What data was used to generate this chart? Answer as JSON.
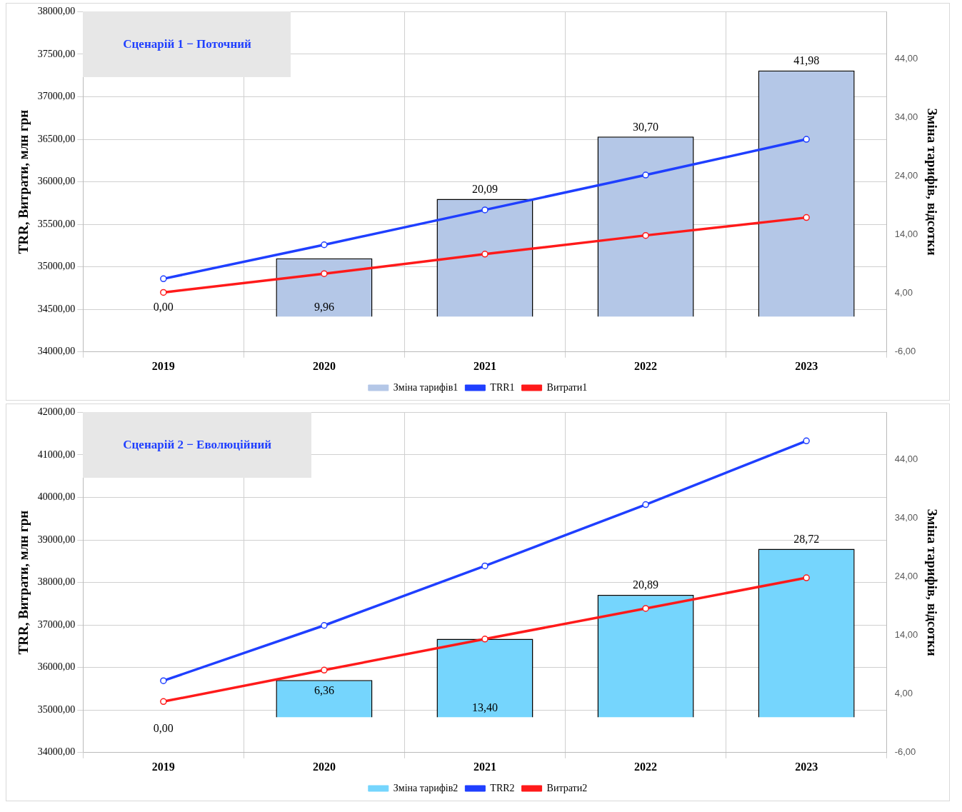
{
  "chart_data": [
    {
      "type": "bar",
      "title": "Сценарій 1 − Поточний",
      "ylabel": "TRR, Витрати, млн грн",
      "y2label": "Зміна тарифів, відсотки",
      "categories": [
        "2019",
        "2020",
        "2021",
        "2022",
        "2023"
      ],
      "series": [
        {
          "name": "Зміна тарифів1",
          "color": "#b4c7e7",
          "axis": "y2",
          "values": [
            0,
            9.96,
            20.09,
            30.7,
            41.98
          ],
          "value_labels": [
            "0,00",
            "9,96",
            "20,09",
            "30,70",
            "41,98"
          ]
        },
        {
          "name": "TRR1",
          "type": "line",
          "color": "#1f3fff",
          "values": [
            34860,
            35260,
            35670,
            36080,
            36500
          ]
        },
        {
          "name": "Витрати1",
          "type": "line",
          "color": "#ff1a1a",
          "values": [
            34700,
            34920,
            35150,
            35370,
            35580
          ]
        }
      ],
      "ylim": [
        34000,
        38000
      ],
      "yticks": [
        {
          "value": 34000,
          "label": "34000,00"
        },
        {
          "value": 34500,
          "label": "34500,00"
        },
        {
          "value": 35000,
          "label": "35000,00"
        },
        {
          "value": 35500,
          "label": "35500,00"
        },
        {
          "value": 36000,
          "label": "36000,00"
        },
        {
          "value": 36500,
          "label": "36500,00"
        },
        {
          "value": 37000,
          "label": "37000,00"
        },
        {
          "value": 37500,
          "label": "37500,00"
        },
        {
          "value": 38000,
          "label": "38000,00"
        }
      ],
      "y2lim": [
        -6,
        52
      ],
      "y2ticks": [
        {
          "value": -6,
          "label": "-6,00"
        },
        {
          "value": 4,
          "label": "4,00"
        },
        {
          "value": 14,
          "label": "14,00"
        },
        {
          "value": 24,
          "label": "24,00"
        },
        {
          "value": 34,
          "label": "34,00"
        },
        {
          "value": 44,
          "label": "44,00"
        }
      ],
      "grid": true,
      "legend": "bottom",
      "marker": "circle"
    },
    {
      "type": "bar",
      "title": "Сценарій 2 − Еволюційний",
      "ylabel": "TRR, Витрати, млн грн",
      "y2label": "Зміна тарифів, відсотки",
      "categories": [
        "2019",
        "2020",
        "2021",
        "2022",
        "2023"
      ],
      "series": [
        {
          "name": "Зміна тарифів2",
          "color": "#75d5fd",
          "axis": "y2",
          "values": [
            0,
            6.36,
            13.4,
            20.89,
            28.72
          ],
          "value_labels": [
            "0,00",
            "6,36",
            "13,40",
            "20,89",
            "28,72"
          ]
        },
        {
          "name": "TRR2",
          "type": "line",
          "color": "#1f3fff",
          "values": [
            35690,
            36990,
            38390,
            39830,
            41330
          ]
        },
        {
          "name": "Витрати2",
          "type": "line",
          "color": "#ff1a1a",
          "values": [
            35200,
            35940,
            36670,
            37390,
            38110
          ]
        }
      ],
      "ylim": [
        34000,
        42000
      ],
      "yticks": [
        {
          "value": 34000,
          "label": "34000,00"
        },
        {
          "value": 35000,
          "label": "35000,00"
        },
        {
          "value": 36000,
          "label": "36000,00"
        },
        {
          "value": 37000,
          "label": "37000,00"
        },
        {
          "value": 38000,
          "label": "38000,00"
        },
        {
          "value": 39000,
          "label": "39000,00"
        },
        {
          "value": 40000,
          "label": "40000,00"
        },
        {
          "value": 41000,
          "label": "41000,00"
        },
        {
          "value": 42000,
          "label": "42000,00"
        }
      ],
      "y2lim": [
        -6,
        52
      ],
      "y2ticks": [
        {
          "value": -6,
          "label": "-6,00"
        },
        {
          "value": 4,
          "label": "4,00"
        },
        {
          "value": 14,
          "label": "14,00"
        },
        {
          "value": 24,
          "label": "24,00"
        },
        {
          "value": 34,
          "label": "34,00"
        },
        {
          "value": 44,
          "label": "44,00"
        }
      ],
      "grid": true,
      "legend": "bottom",
      "marker": "circle"
    }
  ]
}
